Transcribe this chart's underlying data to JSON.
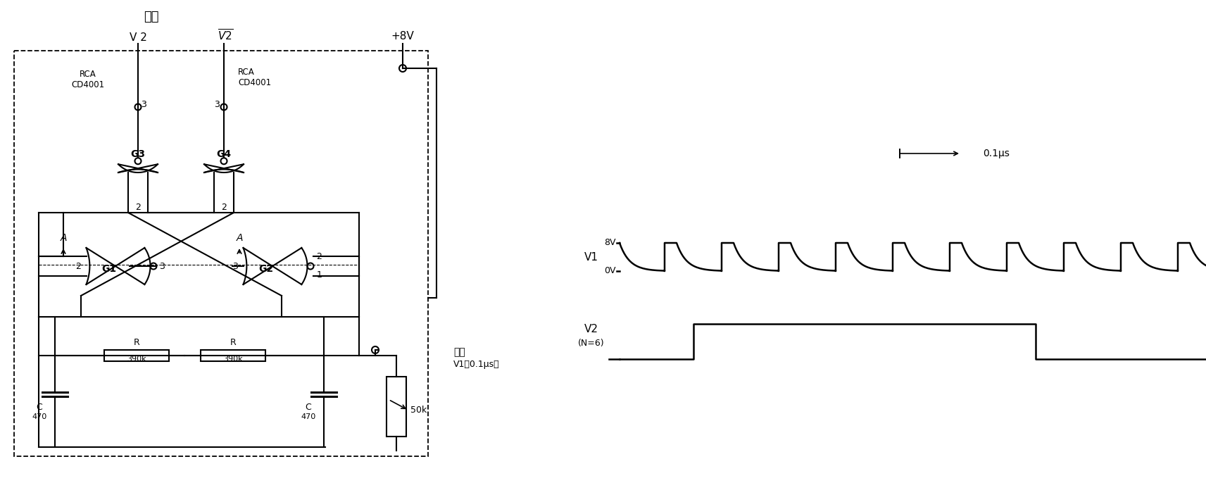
{
  "bg_color": "#ffffff",
  "fig_width": 17.13,
  "fig_height": 6.86,
  "dpi": 100,
  "labels": {
    "output_ch": "输出",
    "input_ch": "输入",
    "v1_input": "V1（0.1μs）",
    "v2": "V 2",
    "v2bar": "$\\overline{V2}$",
    "vcc": "+8V",
    "rca1": "RCA\nCD4001",
    "rca2": "RCA\nCD4001",
    "time_label": "0.1μs",
    "8v": "8V",
    "0v": "0V"
  }
}
